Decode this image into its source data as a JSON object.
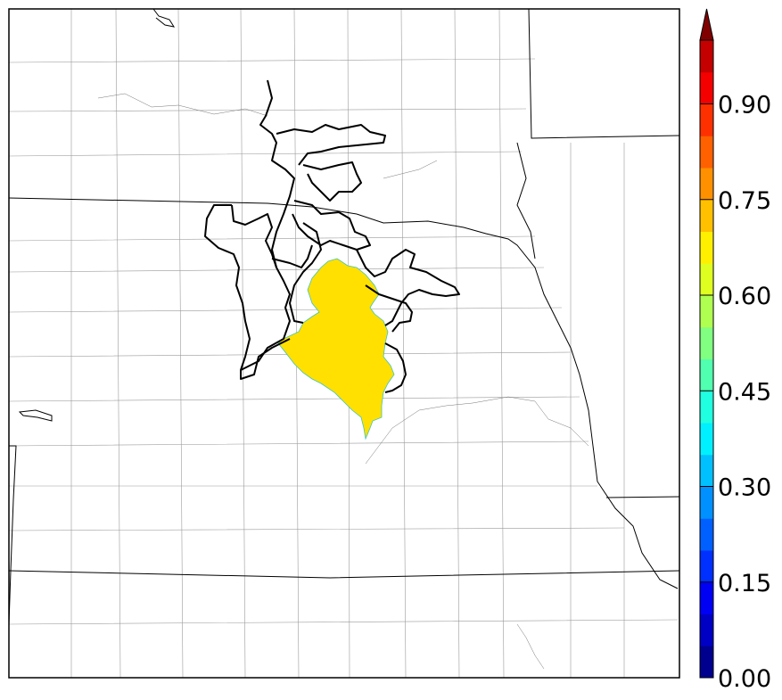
{
  "figure": {
    "kind": "probability-map",
    "fill_color": "#FFE000",
    "outline_color": "#000000",
    "boundary_color": "#000000",
    "county_line_color": "#999999"
  },
  "colorbar": {
    "min": 0.0,
    "max": 1.0,
    "step": 0.05,
    "extend": "max",
    "tick_values": [
      0.0,
      0.15,
      0.3,
      0.45,
      0.6,
      0.75,
      0.9
    ],
    "tick_labels": [
      "0.00",
      "0.15",
      "0.30",
      "0.45",
      "0.60",
      "0.75",
      "0.90"
    ],
    "colors": [
      "#00008F",
      "#0000C4",
      "#0000F5",
      "#0030FF",
      "#0060FF",
      "#0090FF",
      "#00C0FF",
      "#00F0FF",
      "#20FFDF",
      "#50FFAF",
      "#80FF80",
      "#AFFF50",
      "#DFFF20",
      "#FFF000",
      "#FFC000",
      "#FF9000",
      "#FF6000",
      "#FF3000",
      "#F50000",
      "#C40000"
    ],
    "extend_color": "#800000"
  }
}
